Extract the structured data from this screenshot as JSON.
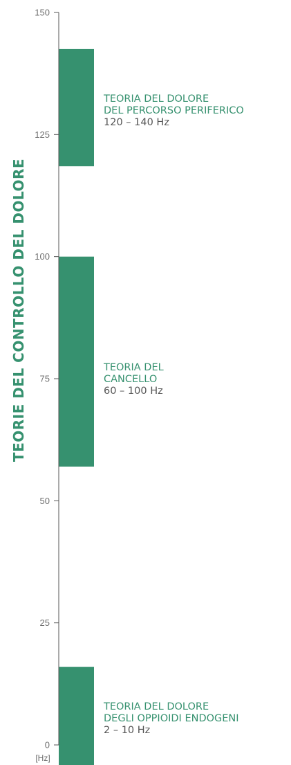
{
  "colors": {
    "accent": "#36916f",
    "axis": "#555555",
    "text": "#6f6f6f"
  },
  "chart_data": {
    "type": "bar",
    "orientation": "vertical-range",
    "title": "TEORIE DEL CONTROLLO DEL DOLORE",
    "ylabel": "[Hz]",
    "ylim": [
      0,
      150
    ],
    "y_ticks": [
      0,
      25,
      50,
      75,
      100,
      125,
      150
    ],
    "ranges": [
      {
        "label_lines": [
          "TEORIA DEL DOLORE",
          "DEL PERCORSO PERIFERICO"
        ],
        "freq_label": "120 – 140 Hz",
        "min": 120,
        "max": 140,
        "label_at": 130
      },
      {
        "label_lines": [
          "TEORIA DEL",
          "CANCELLO"
        ],
        "freq_label": "60 – 100 Hz",
        "min": 60,
        "max": 100,
        "label_at": 75
      },
      {
        "label_lines": [
          "TEORIA DEL DOLORE",
          "DEGLI OPPIOIDI ENDOGENI"
        ],
        "freq_label": "2 – 10 Hz",
        "min": 2,
        "max": 10,
        "label_at": 5.5
      }
    ]
  }
}
